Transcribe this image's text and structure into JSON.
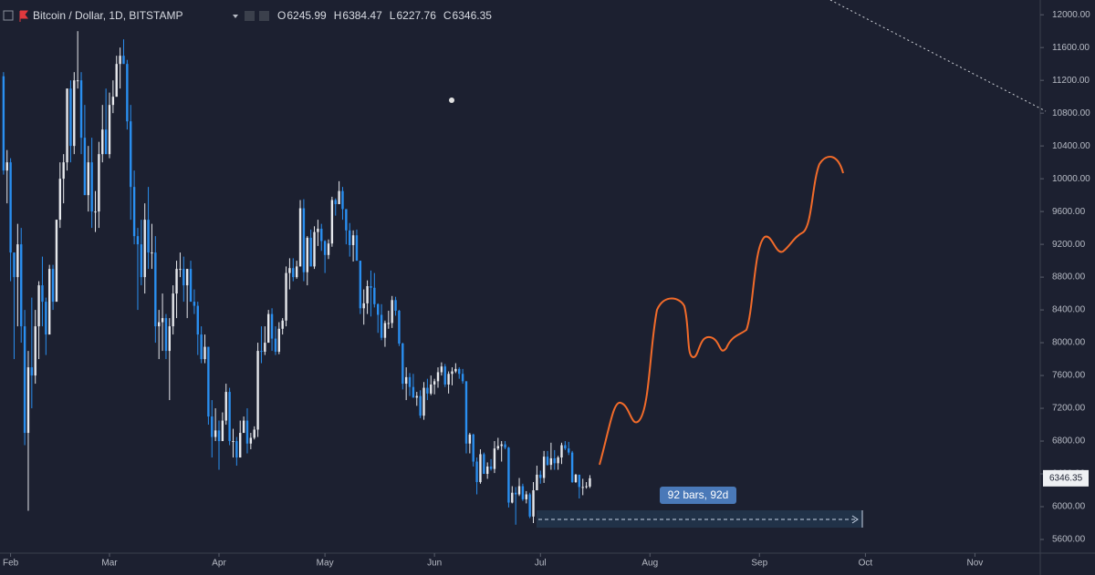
{
  "chart_data": {
    "type": "candlestick",
    "title": "Bitcoin / Dollar, 1D, BITSTAMP",
    "ohlc_labels": [
      "O",
      "H",
      "L",
      "C"
    ],
    "measure_label": "92 bars, 92d",
    "up_color": "#e6e8ec",
    "down_color": "#2a8ff0",
    "xlim": [
      -3,
      291.5
    ],
    "xticks": [
      {
        "value": 0,
        "label": "Feb"
      },
      {
        "value": 28,
        "label": "Mar"
      },
      {
        "value": 59,
        "label": "Apr"
      },
      {
        "value": 89,
        "label": "May"
      },
      {
        "value": 120,
        "label": "Jun"
      },
      {
        "value": 150,
        "label": "Jul"
      },
      {
        "value": 181,
        "label": "Aug"
      },
      {
        "value": 212,
        "label": "Sep"
      },
      {
        "value": 242,
        "label": "Oct"
      },
      {
        "value": 273,
        "label": "Nov"
      }
    ],
    "ylim": [
      5400,
      12180
    ],
    "yticks": [
      {
        "value": 5600,
        "label": "5600.00"
      },
      {
        "value": 6000,
        "label": "6000.00"
      },
      {
        "value": 6400,
        "label": "6400.00"
      },
      {
        "value": 6800,
        "label": "6800.00"
      },
      {
        "value": 7200,
        "label": "7200.00"
      },
      {
        "value": 7600,
        "label": "7600.00"
      },
      {
        "value": 8000,
        "label": "8000.00"
      },
      {
        "value": 8400,
        "label": "8400.00"
      },
      {
        "value": 8800,
        "label": "8800.00"
      },
      {
        "value": 9200,
        "label": "9200.00"
      },
      {
        "value": 9600,
        "label": "9600.00"
      },
      {
        "value": 10000,
        "label": "10000.00"
      },
      {
        "value": 10400,
        "label": "10400.00"
      },
      {
        "value": 10800,
        "label": "10800.00"
      },
      {
        "value": 11200,
        "label": "11200.00"
      },
      {
        "value": 11600,
        "label": "11600.00"
      },
      {
        "value": 12000,
        "label": "12000.00"
      }
    ],
    "ohlc": [
      [
        11250,
        11300,
        10050,
        10100
      ],
      [
        10100,
        10350,
        9700,
        10200
      ],
      [
        10200,
        10250,
        8750,
        9100
      ],
      [
        9100,
        9100,
        7800,
        8800
      ],
      [
        8800,
        9450,
        8200,
        9200
      ],
      [
        9200,
        9400,
        8000,
        8200
      ],
      [
        8200,
        8400,
        6750,
        6900
      ],
      [
        6900,
        7900,
        5950,
        7700
      ],
      [
        7700,
        8550,
        7200,
        7600
      ],
      [
        7600,
        8400,
        7500,
        8200
      ],
      [
        8200,
        8750,
        7800,
        8700
      ],
      [
        8700,
        9050,
        8200,
        8500
      ],
      [
        8500,
        8550,
        7850,
        8100
      ],
      [
        8100,
        8950,
        8100,
        8900
      ],
      [
        8900,
        8950,
        8400,
        8500
      ],
      [
        8500,
        9500,
        8500,
        9500
      ],
      [
        9500,
        10200,
        9400,
        10000
      ],
      [
        10000,
        10300,
        9700,
        10200
      ],
      [
        10200,
        11100,
        10100,
        11100
      ],
      [
        11100,
        11200,
        10200,
        10400
      ],
      [
        10400,
        11300,
        10300,
        11200
      ],
      [
        11200,
        11800,
        11100,
        11200
      ],
      [
        11200,
        11300,
        10300,
        10500
      ],
      [
        10500,
        10900,
        9800,
        9800
      ],
      [
        9800,
        10400,
        9600,
        10200
      ],
      [
        10200,
        10500,
        9400,
        9600
      ],
      [
        9600,
        9850,
        9350,
        9600
      ],
      [
        9600,
        10450,
        9400,
        10300
      ],
      [
        10300,
        10900,
        10200,
        10600
      ],
      [
        10600,
        11100,
        10300,
        10300
      ],
      [
        10300,
        11050,
        10250,
        10900
      ],
      [
        10900,
        11200,
        10800,
        11000
      ],
      [
        11000,
        11500,
        11000,
        11400
      ],
      [
        11400,
        11600,
        11100,
        11500
      ],
      [
        11500,
        11700,
        11400,
        11400
      ],
      [
        11400,
        11450,
        10600,
        10700
      ],
      [
        10700,
        10900,
        9500,
        9900
      ],
      [
        9900,
        10100,
        9200,
        9300
      ],
      [
        9300,
        9400,
        8400,
        9200
      ],
      [
        9200,
        9500,
        8700,
        8800
      ],
      [
        8800,
        9700,
        8600,
        9500
      ],
      [
        9500,
        9900,
        8900,
        9100
      ],
      [
        9100,
        9450,
        8900,
        9100
      ],
      [
        9100,
        9300,
        8000,
        8200
      ],
      [
        8200,
        8400,
        7800,
        8250
      ],
      [
        8250,
        8600,
        7900,
        8300
      ],
      [
        8300,
        8350,
        7800,
        7900
      ],
      [
        7900,
        8300,
        7300,
        8200
      ],
      [
        8200,
        8700,
        8100,
        8600
      ],
      [
        8600,
        9000,
        8300,
        8900
      ],
      [
        8900,
        9100,
        8800,
        8900
      ],
      [
        8900,
        9050,
        8500,
        8700
      ],
      [
        8700,
        8900,
        8300,
        8900
      ],
      [
        8900,
        9000,
        8500,
        8500
      ],
      [
        8500,
        8650,
        8350,
        8450
      ],
      [
        8450,
        8500,
        7850,
        8100
      ],
      [
        8100,
        8200,
        7750,
        7800
      ],
      [
        7800,
        8100,
        7750,
        7950
      ],
      [
        7950,
        7950,
        7000,
        7100
      ],
      [
        7100,
        7300,
        6600,
        6850
      ],
      [
        6850,
        7200,
        6800,
        6930
      ],
      [
        6930,
        7050,
        6450,
        6800
      ],
      [
        6800,
        7150,
        6800,
        7050
      ],
      [
        7050,
        7500,
        7000,
        7400
      ],
      [
        7400,
        7450,
        6750,
        6800
      ],
      [
        6800,
        6950,
        6600,
        6800
      ],
      [
        6800,
        6850,
        6500,
        6600
      ],
      [
        6600,
        7050,
        6600,
        6900
      ],
      [
        6900,
        7100,
        6900,
        7050
      ],
      [
        7050,
        7200,
        6650,
        6770
      ],
      [
        6770,
        6900,
        6700,
        6840
      ],
      [
        6840,
        6980,
        6820,
        6940
      ],
      [
        6940,
        8000,
        6850,
        7900
      ],
      [
        7900,
        8200,
        7750,
        7890
      ],
      [
        7890,
        8200,
        7850,
        8000
      ],
      [
        8000,
        8400,
        8000,
        8350
      ],
      [
        8350,
        8420,
        7900,
        8050
      ],
      [
        8050,
        8200,
        7850,
        7890
      ],
      [
        7890,
        8250,
        7860,
        8170
      ],
      [
        8170,
        8300,
        8100,
        8270
      ],
      [
        8270,
        8930,
        8200,
        8850
      ],
      [
        8850,
        9030,
        8650,
        8910
      ],
      [
        8910,
        9030,
        8750,
        8800
      ],
      [
        8800,
        9000,
        8780,
        8930
      ],
      [
        8930,
        9740,
        8930,
        9640
      ],
      [
        9640,
        9750,
        8750,
        8860
      ],
      [
        8860,
        9300,
        8700,
        9280
      ],
      [
        9280,
        9380,
        8930,
        8930
      ],
      [
        8930,
        9420,
        8900,
        9350
      ],
      [
        9350,
        9500,
        9180,
        9390
      ],
      [
        9390,
        9450,
        9120,
        9240
      ],
      [
        9240,
        9250,
        8850,
        9070
      ],
      [
        9070,
        9260,
        9020,
        9210
      ],
      [
        9210,
        9780,
        9170,
        9740
      ],
      [
        9740,
        9760,
        9550,
        9690
      ],
      [
        9690,
        9970,
        9690,
        9850
      ],
      [
        9850,
        9900,
        9500,
        9630
      ],
      [
        9630,
        9630,
        9200,
        9370
      ],
      [
        9370,
        9460,
        9050,
        9190
      ],
      [
        9190,
        9370,
        8990,
        9310
      ],
      [
        9310,
        9380,
        9000,
        9000
      ],
      [
        9000,
        9000,
        8350,
        8420
      ],
      [
        8420,
        8650,
        8220,
        8480
      ],
      [
        8480,
        8760,
        8350,
        8690
      ],
      [
        8690,
        8880,
        8320,
        8670
      ],
      [
        8670,
        8850,
        8430,
        8470
      ],
      [
        8470,
        8480,
        8120,
        8340
      ],
      [
        8340,
        8470,
        8030,
        8060
      ],
      [
        8060,
        8270,
        7950,
        8240
      ],
      [
        8240,
        8390,
        8170,
        8240
      ],
      [
        8240,
        8570,
        8180,
        8520
      ],
      [
        8520,
        8560,
        8330,
        8390
      ],
      [
        8390,
        8400,
        7960,
        7990
      ],
      [
        7990,
        8000,
        7430,
        7500
      ],
      [
        7500,
        7700,
        7300,
        7580
      ],
      [
        7580,
        7630,
        7350,
        7460
      ],
      [
        7460,
        7620,
        7330,
        7330
      ],
      [
        7330,
        7400,
        7230,
        7350
      ],
      [
        7350,
        7420,
        7080,
        7110
      ],
      [
        7110,
        7520,
        7060,
        7450
      ],
      [
        7450,
        7560,
        7300,
        7380
      ],
      [
        7380,
        7600,
        7360,
        7490
      ],
      [
        7490,
        7560,
        7370,
        7530
      ],
      [
        7530,
        7700,
        7450,
        7640
      ],
      [
        7640,
        7760,
        7600,
        7710
      ],
      [
        7710,
        7740,
        7460,
        7490
      ],
      [
        7490,
        7650,
        7380,
        7620
      ],
      [
        7620,
        7700,
        7480,
        7650
      ],
      [
        7650,
        7750,
        7630,
        7680
      ],
      [
        7680,
        7700,
        7560,
        7620
      ],
      [
        7620,
        7680,
        7500,
        7530
      ],
      [
        7530,
        7530,
        6650,
        6770
      ],
      [
        6770,
        6900,
        6650,
        6880
      ],
      [
        6880,
        6890,
        6490,
        6550
      ],
      [
        6550,
        6600,
        6150,
        6300
      ],
      [
        6300,
        6700,
        6280,
        6640
      ],
      [
        6640,
        6660,
        6400,
        6400
      ],
      [
        6400,
        6540,
        6340,
        6490
      ],
      [
        6490,
        6580,
        6440,
        6460
      ],
      [
        6460,
        6800,
        6410,
        6710
      ],
      [
        6710,
        6840,
        6690,
        6740
      ],
      [
        6740,
        6800,
        6550,
        6760
      ],
      [
        6760,
        6800,
        6700,
        6720
      ],
      [
        6720,
        6730,
        5990,
        6050
      ],
      [
        6050,
        6250,
        6040,
        6170
      ],
      [
        6170,
        6240,
        5780,
        6150
      ],
      [
        6150,
        6350,
        6130,
        6250
      ],
      [
        6250,
        6280,
        6070,
        6090
      ],
      [
        6090,
        6190,
        6040,
        6150
      ],
      [
        6150,
        6170,
        5860,
        5880
      ],
      [
        5880,
        6300,
        5800,
        6200
      ],
      [
        6200,
        6500,
        6200,
        6390
      ],
      [
        6390,
        6440,
        6280,
        6350
      ],
      [
        6350,
        6680,
        6290,
        6610
      ],
      [
        6610,
        6680,
        6500,
        6510
      ],
      [
        6510,
        6780,
        6450,
        6590
      ],
      [
        6590,
        6690,
        6450,
        6530
      ],
      [
        6530,
        6620,
        6450,
        6600
      ],
      [
        6600,
        6780,
        6520,
        6750
      ],
      [
        6750,
        6800,
        6690,
        6710
      ],
      [
        6710,
        6790,
        6630,
        6660
      ],
      [
        6660,
        6680,
        6290,
        6300
      ],
      [
        6300,
        6400,
        6290,
        6390
      ],
      [
        6390,
        6390,
        6100,
        6240
      ],
      [
        6240,
        6340,
        6140,
        6240
      ],
      [
        6240,
        6300,
        6220,
        6250
      ],
      [
        6245.99,
        6384.47,
        6227.76,
        6346.35
      ]
    ]
  }
}
